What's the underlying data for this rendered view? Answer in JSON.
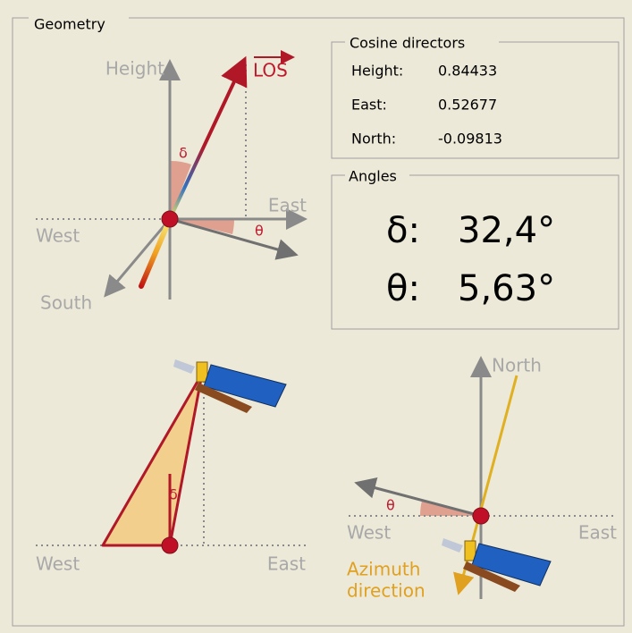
{
  "group": {
    "title": "Geometry"
  },
  "los_view": {
    "height": "Height",
    "los": "LOS",
    "delta": "δ",
    "east": "East",
    "theta": "θ",
    "west": "West",
    "south": "South"
  },
  "cosine_directors": {
    "title": "Cosine directors",
    "rows": [
      [
        "Height:",
        "0.84433"
      ],
      [
        "East:",
        "0.52677"
      ],
      [
        "North:",
        "-0.09813"
      ]
    ]
  },
  "angles": {
    "title": "Angles",
    "rows": [
      [
        "δ:",
        "32,4°"
      ],
      [
        "θ:",
        "5,63°"
      ]
    ]
  },
  "elevation_view": {
    "delta": "δ",
    "west": "West",
    "east": "East"
  },
  "azimuth_view": {
    "north": "North",
    "theta": "θ",
    "west": "West",
    "east": "East",
    "azimuth_label": [
      "Azimuth",
      "direction"
    ]
  }
}
